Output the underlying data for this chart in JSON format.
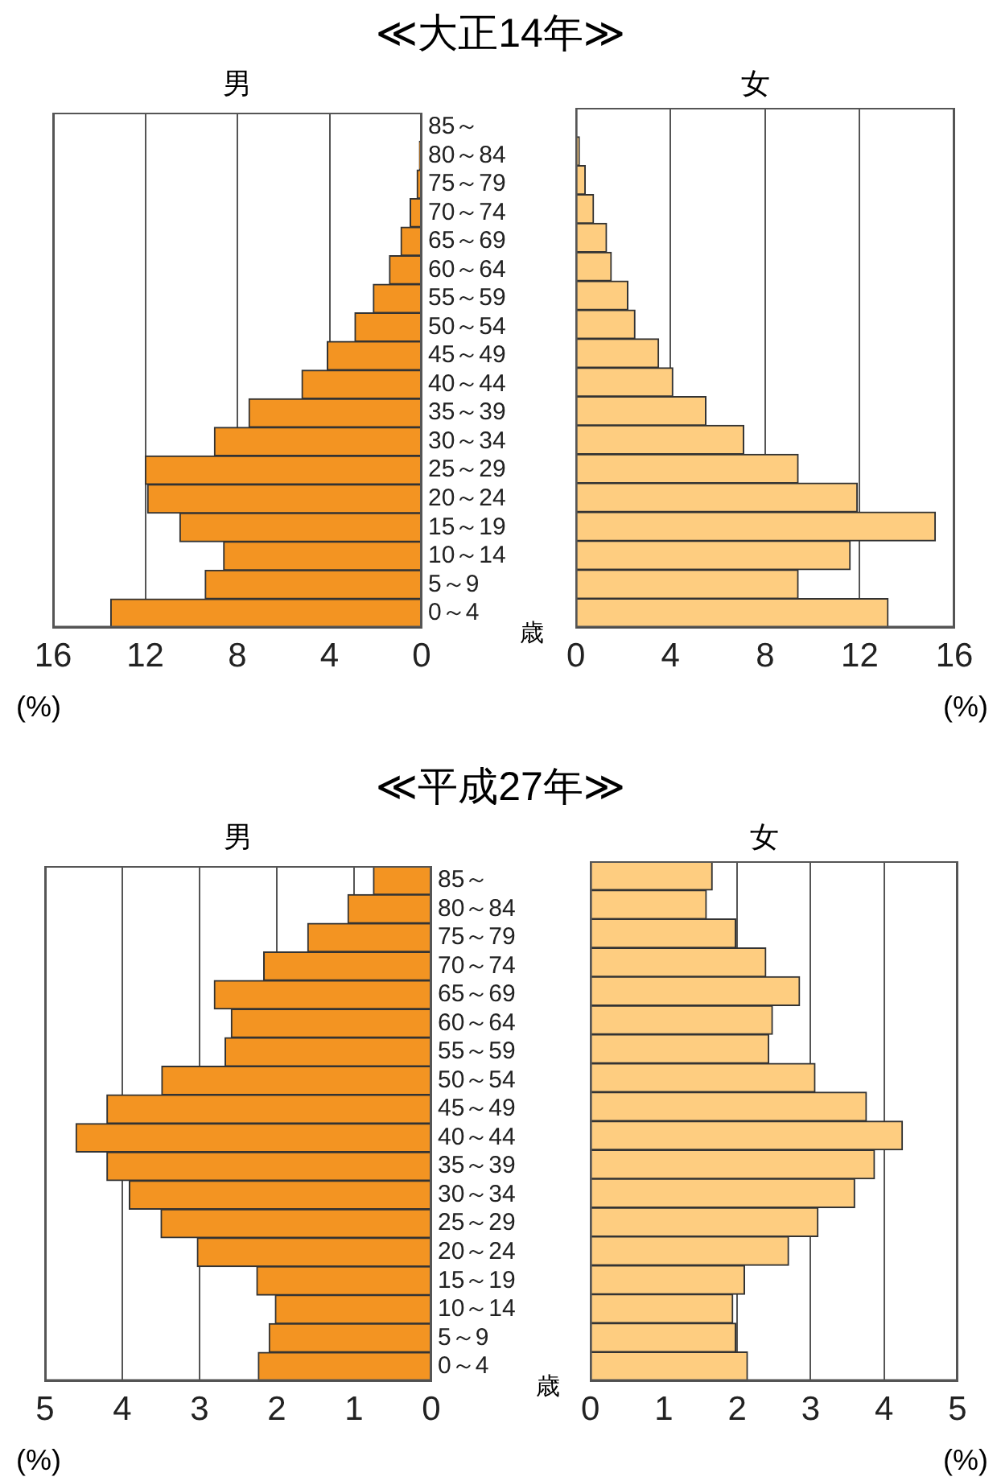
{
  "chart_data": [
    {
      "type": "bar",
      "orientation": "horizontal",
      "title": "≪大正14年≫",
      "subtitle": "男",
      "xlabel": "(%)",
      "ylabel": "歳",
      "categories": [
        "85～",
        "80～84",
        "75～79",
        "70～74",
        "65～69",
        "60～64",
        "55～59",
        "50～54",
        "45～49",
        "40～44",
        "35～39",
        "30～34",
        "25～29",
        "20～24",
        "15～19",
        "10～14",
        "5～9",
        "0～4"
      ],
      "values": [
        null,
        0.1,
        0.2,
        0.5,
        0.9,
        1.4,
        2.1,
        2.9,
        4.1,
        5.2,
        7.5,
        9.0,
        12.0,
        11.9,
        10.5,
        8.6,
        9.4,
        13.5
      ],
      "color": "#f39422",
      "xlim": [
        16,
        0
      ],
      "xticks": [
        16,
        12,
        8,
        4,
        0
      ],
      "grid": "x"
    },
    {
      "type": "bar",
      "orientation": "horizontal",
      "subtitle": "女",
      "xlabel": "(%)",
      "categories": [
        null,
        null,
        null,
        null,
        null,
        null,
        null,
        null,
        null,
        null,
        null,
        null,
        null,
        null,
        null,
        null,
        null,
        null
      ],
      "values": [
        null,
        0.15,
        0.4,
        0.75,
        1.3,
        1.5,
        2.2,
        2.5,
        3.5,
        4.1,
        5.5,
        7.1,
        9.4,
        11.9,
        15.2,
        11.6,
        9.4,
        13.2
      ],
      "color": "#fecd80",
      "xlim": [
        0,
        16
      ],
      "xticks": [
        0,
        4,
        8,
        12,
        16
      ],
      "grid": "x",
      "tick_labels": "x"
    },
    {
      "type": "bar",
      "orientation": "horizontal",
      "title": "≪平成27年≫",
      "subtitle": "男",
      "xlabel": "(%)",
      "ylabel": "歳",
      "categories": [
        "85～",
        "80～84",
        "75～79",
        "70～74",
        "65～69",
        "60～64",
        "55～59",
        "50～54",
        "45～49",
        "40～44",
        "35～39",
        "30～34",
        "25～29",
        "20～24",
        "15～19",
        "10～14",
        "5～9",
        "0～4"
      ],
      "values": [
        0.75,
        1.08,
        1.6,
        2.17,
        2.81,
        2.59,
        2.67,
        3.49,
        4.2,
        4.6,
        4.2,
        3.91,
        3.5,
        3.03,
        2.26,
        2.02,
        2.1,
        2.24
      ],
      "color": "#f39422",
      "xlim": [
        5,
        0
      ],
      "xticks": [
        5,
        4,
        3,
        2,
        1,
        0
      ],
      "grid": "x"
    },
    {
      "type": "bar",
      "orientation": "horizontal",
      "subtitle": "女",
      "xlabel": "(%)",
      "categories": [
        null,
        null,
        null,
        null,
        null,
        null,
        null,
        null,
        null,
        null,
        null,
        null,
        null,
        null,
        null,
        null,
        null,
        null
      ],
      "values": [
        1.66,
        1.58,
        1.98,
        2.39,
        2.85,
        2.48,
        2.43,
        3.06,
        3.76,
        4.25,
        3.87,
        3.6,
        3.1,
        2.7,
        2.1,
        1.94,
        1.98,
        2.14
      ],
      "color": "#fecd80",
      "xlim": [
        0,
        5
      ],
      "xticks": [
        0,
        1,
        2,
        3,
        4,
        5
      ],
      "grid": "x",
      "tick_labels": "x"
    }
  ]
}
